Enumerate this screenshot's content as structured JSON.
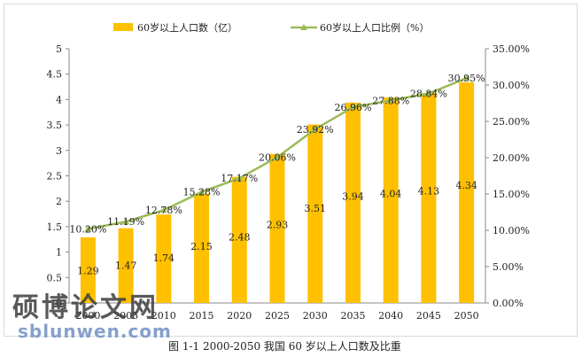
{
  "caption": "图 1-1 2000-2050 我国 60 岁以上人口数及比重",
  "watermark": {
    "cn": "硕博论文网",
    "en": "sblunwen.com"
  },
  "colors": {
    "bar": "#FFC000",
    "line": "#9BBB59",
    "axis": "#888888",
    "grid": "#d9d9d9"
  },
  "chart_data": {
    "type": "bar+line",
    "categories": [
      "2000",
      "2005",
      "2010",
      "2015",
      "2020",
      "2025",
      "2030",
      "2035",
      "2040",
      "2045",
      "2050"
    ],
    "series": [
      {
        "name": "60岁以上人口数（亿）",
        "type": "bar",
        "axis": "left",
        "values": [
          1.29,
          1.47,
          1.74,
          2.15,
          2.48,
          2.93,
          3.51,
          3.94,
          4.04,
          4.13,
          4.34
        ],
        "labels": [
          "1.29",
          "1.47",
          "1.74",
          "2.15",
          "2.48",
          "2.93",
          "3.51",
          "3.94",
          "4.04",
          "4.13",
          "4.34"
        ]
      },
      {
        "name": "60岁以上人口比例（%）",
        "type": "line",
        "axis": "right",
        "values": [
          10.2,
          11.19,
          12.78,
          15.28,
          17.17,
          20.06,
          23.92,
          26.96,
          27.88,
          28.84,
          30.95
        ],
        "labels": [
          "10.20%",
          "11.19%",
          "12.78%",
          "15.28%",
          "17.17%",
          "20.06%",
          "23.92%",
          "26.96%",
          "27.88%",
          "28.84%",
          "30.95%"
        ]
      }
    ],
    "y_left": {
      "min": 0,
      "max": 5,
      "ticks": [
        "0",
        "0.5",
        "1",
        "1.5",
        "2",
        "2.5",
        "3",
        "3.5",
        "4",
        "4.5",
        "5"
      ]
    },
    "y_right": {
      "min": 0,
      "max": 35,
      "ticks": [
        "0.00%",
        "5.00%",
        "10.00%",
        "15.00%",
        "20.00%",
        "25.00%",
        "30.00%",
        "35.00%"
      ]
    },
    "legend_position": "top"
  }
}
